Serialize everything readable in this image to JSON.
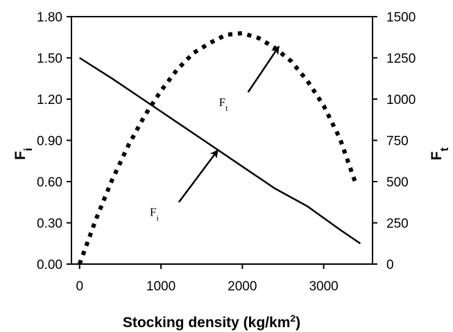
{
  "chart_data": {
    "type": "line",
    "xlabel_main": "Stocking density (kg/km",
    "xlabel_sup": "2",
    "xlabel_close": ")",
    "ylabel_left_main": "F",
    "ylabel_left_sub": "i",
    "ylabel_right_main": "F",
    "ylabel_right_sub": "t",
    "xlim": [
      -100,
      3600
    ],
    "ylim_left": [
      0,
      1.8
    ],
    "ylim_right": [
      0,
      1500
    ],
    "x_ticks": [
      "0",
      "1000",
      "2000",
      "3000"
    ],
    "x_tick_values": [
      0,
      1000,
      2000,
      3000
    ],
    "y_left_ticks": [
      "0.00",
      "0.30",
      "0.60",
      "0.90",
      "1.20",
      "1.50",
      "1.80"
    ],
    "y_left_tick_values": [
      0,
      0.3,
      0.6,
      0.9,
      1.2,
      1.5,
      1.8
    ],
    "y_right_ticks": [
      "0",
      "250",
      "500",
      "750",
      "1000",
      "1250",
      "1500"
    ],
    "y_right_tick_values": [
      0,
      250,
      500,
      750,
      1000,
      1250,
      1500
    ],
    "series": [
      {
        "name": "F",
        "name_sub": "i",
        "axis": "left",
        "style": "solid",
        "x": [
          0,
          400,
          800,
          1200,
          1600,
          2000,
          2400,
          2800,
          3200,
          3450
        ],
        "y": [
          1.5,
          1.35,
          1.19,
          1.03,
          0.87,
          0.71,
          0.55,
          0.42,
          0.25,
          0.15
        ]
      },
      {
        "name": "F",
        "name_sub": "t",
        "axis": "right",
        "style": "dotted",
        "x": [
          0,
          200,
          400,
          600,
          800,
          1000,
          1200,
          1400,
          1600,
          1800,
          2000,
          2200,
          2400,
          2600,
          2800,
          3000,
          3200,
          3400
        ],
        "y": [
          0,
          270,
          510,
          720,
          900,
          1050,
          1180,
          1280,
          1340,
          1390,
          1400,
          1370,
          1310,
          1230,
          1110,
          960,
          760,
          480
        ]
      }
    ],
    "annotations": [
      {
        "text": "F",
        "sub": "t",
        "tx": 1900,
        "ty_right": 1000,
        "ax": 2450,
        "ay_right": 1320
      },
      {
        "text": "F",
        "sub": "i",
        "tx": 1050,
        "ty_left": 0.4,
        "ax": 1700,
        "ay_left": 0.83
      }
    ]
  }
}
